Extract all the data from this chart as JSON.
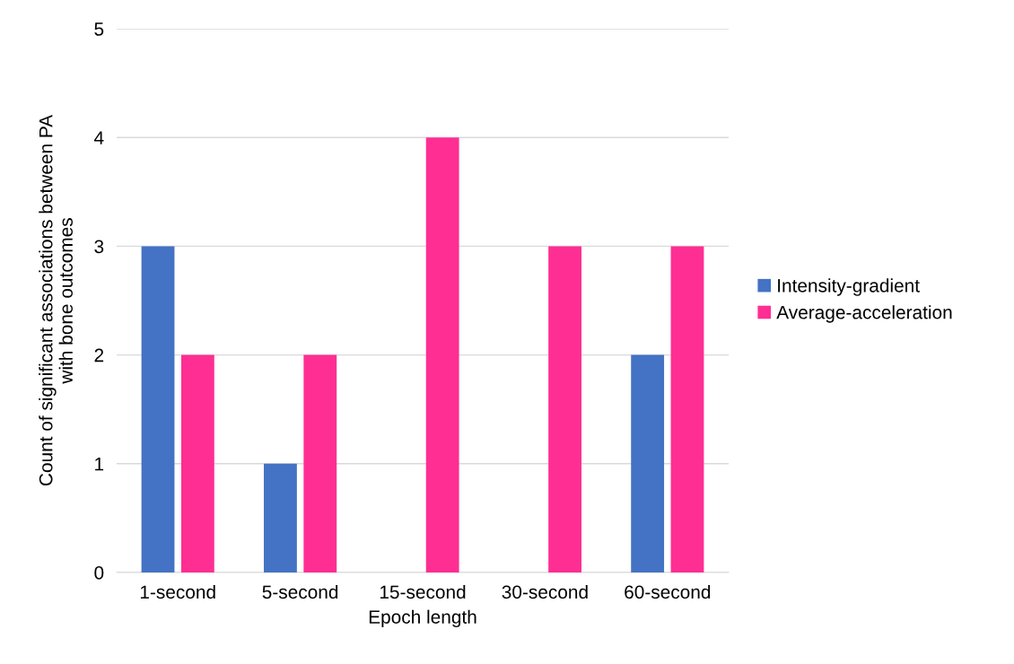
{
  "chart_data": {
    "type": "bar",
    "xlabel": "Epoch length",
    "ylabel": "Count of significant associations between PA\nwith bone outcomes",
    "categories": [
      "1-second",
      "5-second",
      "15-second",
      "30-second",
      "60-second"
    ],
    "series": [
      {
        "name": "Intensity-gradient",
        "color": "#4472c4",
        "values": [
          3,
          1,
          0,
          0,
          2
        ]
      },
      {
        "name": "Average-acceleration",
        "color": "#ff2e93",
        "values": [
          2,
          2,
          4,
          3,
          3
        ]
      }
    ],
    "ylim": [
      0,
      5
    ],
    "yticks": [
      0,
      1,
      2,
      3,
      4,
      5
    ],
    "grid": "y",
    "legend": "right"
  }
}
